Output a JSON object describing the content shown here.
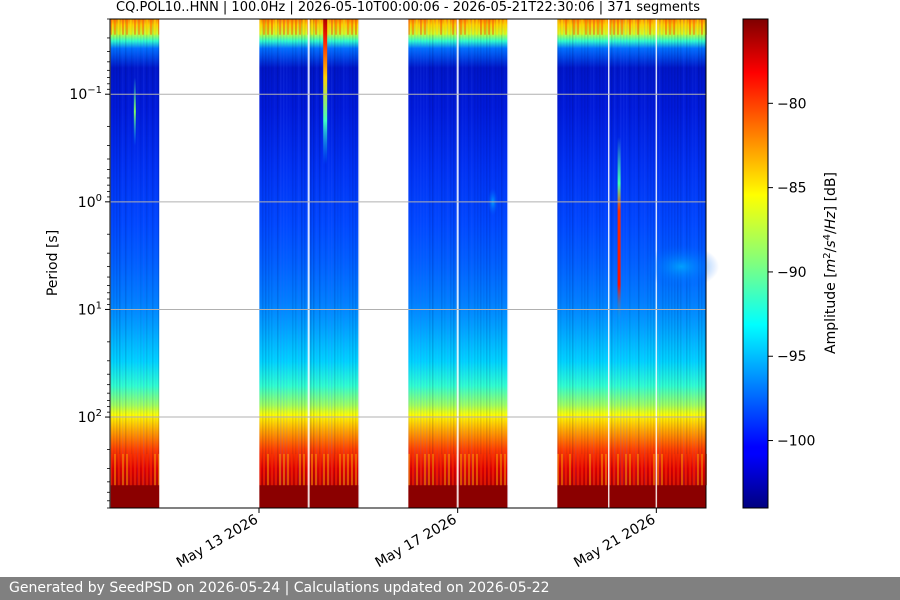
{
  "chart_data": {
    "type": "heatmap",
    "title": "CQ.POL10..HNN | 100.0Hz | 2026-05-10T00:00:06 - 2026-05-21T22:30:06 | 371 segments",
    "ylabel": "Period [s]",
    "y_scale": "log",
    "y_inverted": true,
    "ylim": [
      0.02,
      700
    ],
    "y_ticks": [
      {
        "value": 0.1,
        "base": "10",
        "exp": "−1"
      },
      {
        "value": 1,
        "base": "10",
        "exp": "0"
      },
      {
        "value": 10,
        "base": "10",
        "exp": "1"
      },
      {
        "value": 100,
        "base": "10",
        "exp": "2"
      }
    ],
    "x_range": [
      "2026-05-10",
      "2026-05-22"
    ],
    "x_ticks": [
      {
        "date": "2026-05-13",
        "label": "May 13 2026"
      },
      {
        "date": "2026-05-17",
        "label": "May 17 2026"
      },
      {
        "date": "2026-05-21",
        "label": "May 21 2026"
      }
    ],
    "data_segments": [
      {
        "start": "2026-05-10",
        "end": "2026-05-11"
      },
      {
        "start": "2026-05-13",
        "end": "2026-05-15"
      },
      {
        "start": "2026-05-16",
        "end": "2026-05-18"
      },
      {
        "start": "2026-05-19",
        "end": "2026-05-22"
      }
    ],
    "colorbar": {
      "label_parts": [
        "Amplitude [",
        "m",
        "2",
        "/",
        "s",
        "4",
        "/",
        "Hz",
        "] [dB]"
      ],
      "colormap": "jet",
      "range": [
        -104,
        -75
      ],
      "ticks": [
        {
          "value": -80,
          "label": "−80"
        },
        {
          "value": -85,
          "label": "−85"
        },
        {
          "value": -90,
          "label": "−90"
        },
        {
          "value": -95,
          "label": "−95"
        },
        {
          "value": -100,
          "label": "−100"
        }
      ]
    },
    "grid": true
  },
  "footer": "Generated by SeedPSD on 2026-05-24 | Calculations updated on 2026-05-22"
}
